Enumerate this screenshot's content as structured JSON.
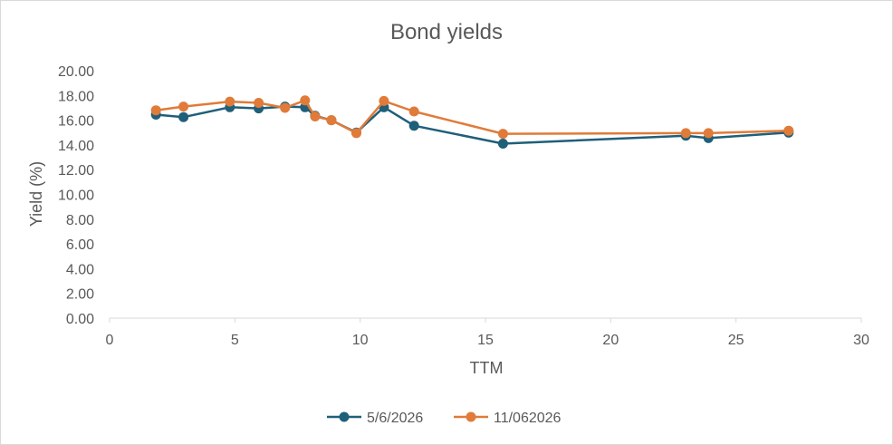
{
  "chart_data": {
    "type": "line",
    "title": "Bond yields",
    "xlabel": "TTM",
    "ylabel": "Yield (%)",
    "xlim": [
      0,
      30
    ],
    "ylim": [
      0,
      20
    ],
    "x_ticks": [
      "0",
      "5",
      "10",
      "15",
      "20",
      "25",
      "30"
    ],
    "y_ticks": [
      "0.00",
      "2.00",
      "4.00",
      "6.00",
      "8.00",
      "10.00",
      "12.00",
      "14.00",
      "16.00",
      "18.00",
      "20.00"
    ],
    "grid": false,
    "legend_position": "bottom",
    "series": [
      {
        "name": "5/6/2026",
        "color": "#1f5f7a",
        "x": [
          1.85,
          2.95,
          4.8,
          5.95,
          7.0,
          7.8,
          8.2,
          8.85,
          9.85,
          10.95,
          12.15,
          15.7,
          23.0,
          23.9,
          27.1
        ],
        "y": [
          16.45,
          16.25,
          17.05,
          16.95,
          17.1,
          17.05,
          16.35,
          16.0,
          15.0,
          17.05,
          15.55,
          14.1,
          14.75,
          14.55,
          15.0
        ]
      },
      {
        "name": "11/062026",
        "color": "#e07b39",
        "x": [
          1.85,
          2.95,
          4.8,
          5.95,
          7.0,
          7.8,
          8.2,
          8.85,
          9.85,
          10.95,
          12.15,
          15.7,
          23.0,
          23.9,
          27.1
        ],
        "y": [
          16.8,
          17.1,
          17.5,
          17.4,
          17.0,
          17.6,
          16.3,
          16.0,
          14.95,
          17.55,
          16.7,
          14.9,
          14.95,
          14.95,
          15.15
        ]
      }
    ]
  }
}
